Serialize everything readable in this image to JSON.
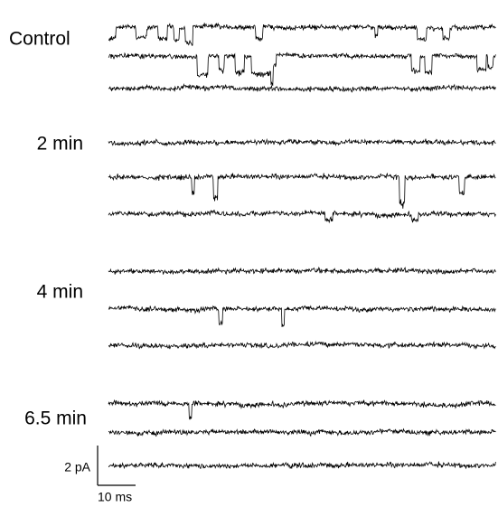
{
  "figure": {
    "groups": [
      {
        "label": "Control"
      },
      {
        "label": "2 min"
      },
      {
        "label": "4 min"
      },
      {
        "label": "6.5 min"
      }
    ],
    "scale_bar": {
      "y_label": "2 pA",
      "x_label": "10 ms"
    }
  }
}
